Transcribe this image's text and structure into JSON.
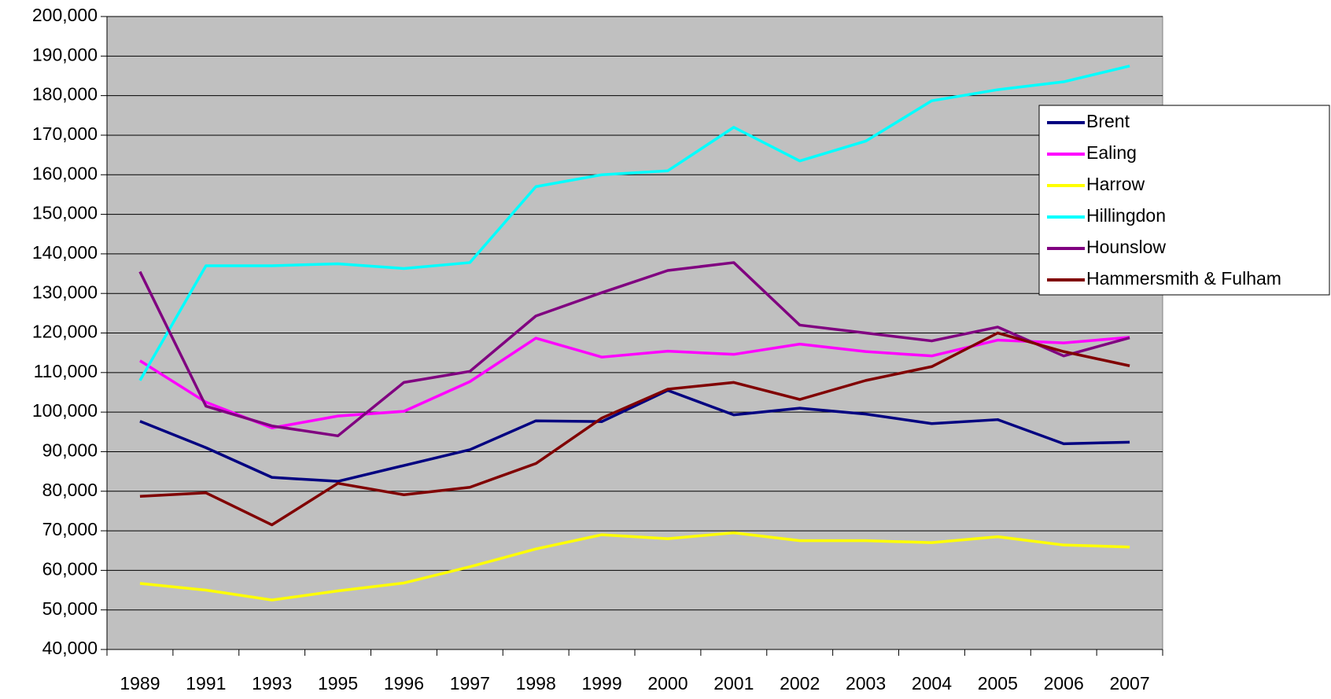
{
  "chart_data": {
    "type": "line",
    "categories": [
      "1989",
      "1991",
      "1993",
      "1995",
      "1996",
      "1997",
      "1998",
      "1999",
      "2000",
      "2001",
      "2002",
      "2003",
      "2004",
      "2005",
      "2006",
      "2007"
    ],
    "series": [
      {
        "name": "Brent",
        "color": "#000080",
        "values": [
          97700,
          91000,
          83500,
          82500,
          86500,
          90500,
          97800,
          97600,
          105500,
          99300,
          101000,
          99500,
          97100,
          98100,
          92000,
          92400
        ]
      },
      {
        "name": "Ealing",
        "color": "#ff00ff",
        "values": [
          113000,
          102500,
          96000,
          99000,
          100200,
          107700,
          118700,
          113900,
          115400,
          114600,
          117200,
          115300,
          114200,
          118200,
          117500,
          118900
        ]
      },
      {
        "name": "Harrow",
        "color": "#ffff00",
        "values": [
          56700,
          55000,
          52500,
          54800,
          56800,
          60900,
          65400,
          69000,
          68000,
          69500,
          67500,
          67500,
          67000,
          68500,
          66400,
          65900
        ]
      },
      {
        "name": "Hillingdon",
        "color": "#00ffff",
        "values": [
          108000,
          137000,
          137000,
          137500,
          136300,
          137800,
          157000,
          160000,
          161000,
          172000,
          163500,
          168500,
          178700,
          181500,
          183500,
          187500
        ]
      },
      {
        "name": "Hounslow",
        "color": "#800080",
        "values": [
          135500,
          101500,
          96500,
          94000,
          107500,
          110300,
          124300,
          130200,
          135800,
          137800,
          122000,
          120000,
          118000,
          121500,
          114200,
          118800
        ]
      },
      {
        "name": "Hammersmith & Fulham",
        "color": "#800000",
        "values": [
          78700,
          79600,
          71500,
          82000,
          79100,
          81000,
          87000,
          98500,
          105800,
          107500,
          103200,
          108000,
          111500,
          120000,
          115300,
          111700
        ]
      }
    ],
    "ylim": [
      40000,
      200000
    ],
    "yticks": [
      {
        "value": 40000,
        "label": "40,000"
      },
      {
        "value": 50000,
        "label": "50,000"
      },
      {
        "value": 60000,
        "label": "60,000"
      },
      {
        "value": 70000,
        "label": "70,000"
      },
      {
        "value": 80000,
        "label": "80,000"
      },
      {
        "value": 90000,
        "label": "90,000"
      },
      {
        "value": 100000,
        "label": "100,000"
      },
      {
        "value": 110000,
        "label": "110,000"
      },
      {
        "value": 120000,
        "label": "120,000"
      },
      {
        "value": 130000,
        "label": "130,000"
      },
      {
        "value": 140000,
        "label": "140,000"
      },
      {
        "value": 150000,
        "label": "150,000"
      },
      {
        "value": 160000,
        "label": "160,000"
      },
      {
        "value": 170000,
        "label": "170,000"
      },
      {
        "value": 180000,
        "label": "180,000"
      },
      {
        "value": 190000,
        "label": "190,000"
      },
      {
        "value": 200000,
        "label": "200,000"
      }
    ],
    "grid": true,
    "legend": "right"
  }
}
